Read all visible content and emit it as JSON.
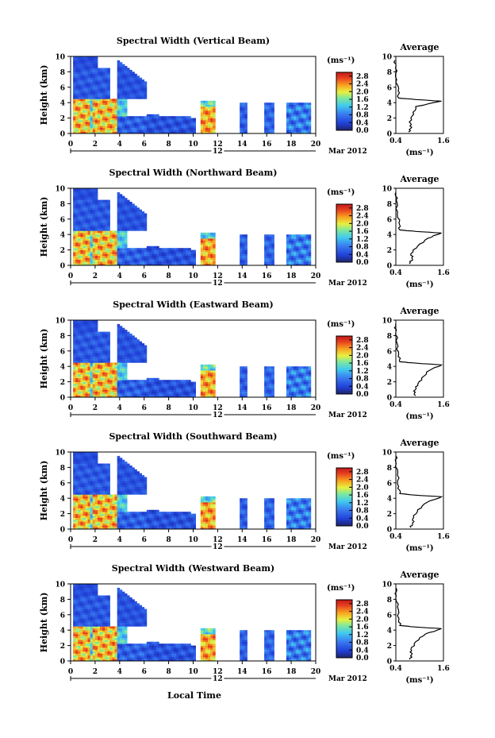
{
  "figure": {
    "xlabel": "Local Time",
    "date_label": "Mar 2012",
    "day_label": "12",
    "colorbar_unit": "(ms⁻¹)",
    "avg_title": "Average",
    "avg_xlabel": "(ms⁻¹)"
  },
  "chart_data": [
    {
      "type": "heatmap",
      "title": "Spectral Width (Vertical Beam)",
      "ylabel": "Height (km)",
      "x_ticks": [
        "0",
        "2",
        "4",
        "6",
        "8",
        "10",
        "12",
        "14",
        "16",
        "18",
        "20"
      ],
      "xlim": [
        0,
        20
      ],
      "y_ticks": [
        "0",
        "2",
        "4",
        "6",
        "8",
        "10"
      ],
      "ylim": [
        0,
        10
      ],
      "colorbar_ticks": [
        "0.0",
        "0.4",
        "0.8",
        "1.2",
        "1.6",
        "2.0",
        "2.4",
        "2.8"
      ],
      "colorbar_range": [
        0,
        3.0
      ],
      "average": {
        "xlim": [
          0.4,
          1.6
        ],
        "x_ticks": [
          "0.4",
          "1.6"
        ],
        "height": [
          0.2,
          0.8,
          1.5,
          2.5,
          3.5,
          4.2,
          4.4,
          4.6,
          5.5,
          7,
          8.5,
          9.5
        ],
        "value": [
          0.72,
          0.8,
          0.74,
          0.85,
          0.9,
          1.55,
          0.9,
          0.47,
          0.46,
          0.42,
          0.39,
          0.38
        ]
      }
    },
    {
      "type": "heatmap",
      "title": "Spectral Width (Northward Beam)",
      "ylabel": "Height (km)",
      "x_ticks": [
        "0",
        "2",
        "4",
        "6",
        "8",
        "10",
        "12",
        "14",
        "16",
        "18",
        "20"
      ],
      "xlim": [
        0,
        20
      ],
      "y_ticks": [
        "0",
        "2",
        "4",
        "6",
        "8",
        "10"
      ],
      "ylim": [
        0,
        10
      ],
      "colorbar_ticks": [
        "0.0",
        "0.4",
        "0.8",
        "1.2",
        "1.6",
        "2.0",
        "2.4",
        "2.8"
      ],
      "colorbar_range": [
        0,
        3.0
      ],
      "average": {
        "xlim": [
          0.4,
          1.6
        ],
        "x_ticks": [
          "0.4",
          "1.6"
        ],
        "height": [
          0.2,
          0.8,
          1.5,
          2.5,
          3.5,
          4.2,
          4.4,
          4.6,
          5.5,
          7,
          8.5,
          9.5
        ],
        "value": [
          0.74,
          0.82,
          0.78,
          0.95,
          1.2,
          1.55,
          0.9,
          0.5,
          0.48,
          0.44,
          0.41,
          0.4
        ]
      }
    },
    {
      "type": "heatmap",
      "title": "Spectral Width (Eastward Beam)",
      "ylabel": "Height (km)",
      "x_ticks": [
        "0",
        "2",
        "4",
        "6",
        "8",
        "10",
        "12",
        "14",
        "16",
        "18",
        "20"
      ],
      "xlim": [
        0,
        20
      ],
      "y_ticks": [
        "0",
        "2",
        "4",
        "6",
        "8",
        "10"
      ],
      "ylim": [
        0,
        10
      ],
      "colorbar_ticks": [
        "0.0",
        "0.4",
        "0.8",
        "1.2",
        "1.6",
        "2.0",
        "2.4",
        "2.8"
      ],
      "colorbar_range": [
        0,
        3.0
      ],
      "average": {
        "xlim": [
          0.4,
          1.6
        ],
        "x_ticks": [
          "0.4",
          "1.6"
        ],
        "height": [
          0.2,
          0.8,
          1.5,
          2.5,
          3.5,
          4.2,
          4.4,
          4.6,
          5.5,
          7,
          8.5,
          9.5
        ],
        "value": [
          0.9,
          0.85,
          0.95,
          1.05,
          1.25,
          1.55,
          0.95,
          0.5,
          0.47,
          0.43,
          0.4,
          0.39
        ]
      }
    },
    {
      "type": "heatmap",
      "title": "Spectral Width (Southward Beam)",
      "ylabel": "Height (km)",
      "x_ticks": [
        "0",
        "2",
        "4",
        "6",
        "8",
        "10",
        "12",
        "14",
        "16",
        "18",
        "20"
      ],
      "xlim": [
        0,
        20
      ],
      "y_ticks": [
        "0",
        "2",
        "4",
        "6",
        "8",
        "10"
      ],
      "ylim": [
        0,
        10
      ],
      "colorbar_ticks": [
        "0.0",
        "0.4",
        "0.8",
        "1.2",
        "1.6",
        "2.0",
        "2.4",
        "2.8"
      ],
      "colorbar_range": [
        0,
        3.0
      ],
      "average": {
        "xlim": [
          0.4,
          1.6
        ],
        "x_ticks": [
          "0.4",
          "1.6"
        ],
        "height": [
          0.2,
          0.8,
          1.5,
          2.5,
          3.5,
          4.2,
          4.4,
          4.6,
          5.5,
          7,
          8.5,
          9.5
        ],
        "value": [
          0.78,
          0.82,
          0.85,
          0.95,
          1.2,
          1.55,
          0.9,
          0.5,
          0.47,
          0.44,
          0.41,
          0.4
        ]
      }
    },
    {
      "type": "heatmap",
      "title": "Spectral Width (Westward Beam)",
      "ylabel": "Height (km)",
      "x_ticks": [
        "0",
        "2",
        "4",
        "6",
        "8",
        "10",
        "12",
        "14",
        "16",
        "18",
        "20"
      ],
      "xlim": [
        0,
        20
      ],
      "y_ticks": [
        "0",
        "2",
        "4",
        "6",
        "8",
        "10"
      ],
      "ylim": [
        0,
        10
      ],
      "colorbar_ticks": [
        "0.0",
        "0.4",
        "0.8",
        "1.2",
        "1.6",
        "2.0",
        "2.4",
        "2.8"
      ],
      "colorbar_range": [
        0,
        3.0
      ],
      "average": {
        "xlim": [
          0.4,
          1.6
        ],
        "x_ticks": [
          "0.4",
          "1.6"
        ],
        "height": [
          0.2,
          0.8,
          1.5,
          2.5,
          3.5,
          4.2,
          4.4,
          4.6,
          5.5,
          7,
          8.5,
          9.5
        ],
        "value": [
          0.75,
          0.8,
          0.78,
          0.9,
          1.15,
          1.55,
          0.9,
          0.5,
          0.48,
          0.44,
          0.41,
          0.4
        ]
      }
    }
  ]
}
